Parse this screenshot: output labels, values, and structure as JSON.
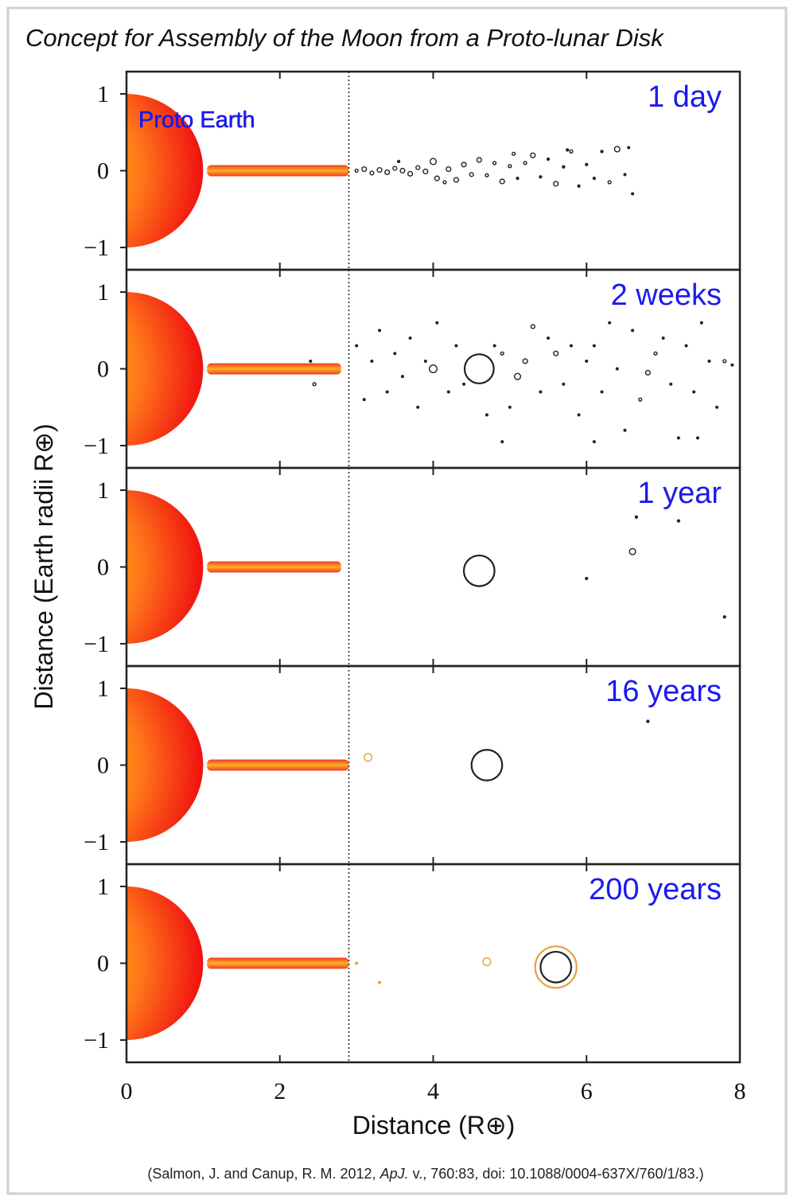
{
  "chart_data": {
    "type": "scatter",
    "title": "Concept for Assembly of the Moon from a Proto-lunar Disk",
    "xlabel": "Distance (R⊕)",
    "ylabel": "Distance (Earth radii R⊕)",
    "xlim": [
      0,
      8
    ],
    "xticks": [
      0,
      2,
      4,
      6,
      8
    ],
    "ylim": [
      -1.29,
      1.29
    ],
    "yticks": [
      {
        "value": 1,
        "label": "1"
      },
      0,
      {
        "value": -1,
        "label": "−1"
      }
    ],
    "roche_limit": 2.9,
    "earth_label": "Proto Earth",
    "panels": [
      {
        "label": "1 day",
        "disk_end": 2.9,
        "particles": [
          {
            "color": "#222222",
            "x": [
              3.0,
              3.1,
              3.2,
              3.3,
              3.4,
              3.5,
              3.6,
              3.7,
              3.8,
              3.9,
              4.0,
              4.05,
              4.2,
              4.3,
              4.4,
              4.5,
              4.6,
              4.7,
              4.8,
              4.9,
              5.0,
              5.1,
              5.2,
              5.3,
              5.4,
              5.5,
              5.6,
              5.7,
              5.8,
              5.9,
              6.0,
              6.1,
              6.2,
              6.3,
              6.4,
              6.5,
              6.55,
              6.6,
              4.15,
              5.05,
              5.75,
              3.55
            ],
            "y": [
              0,
              0.02,
              -0.03,
              0.01,
              -0.02,
              0.03,
              0,
              -0.04,
              0.04,
              -0.01,
              0.12,
              -0.1,
              0.02,
              -0.12,
              0.08,
              -0.05,
              0.14,
              -0.06,
              0.1,
              -0.14,
              0.06,
              -0.1,
              0.1,
              0.2,
              -0.08,
              0.15,
              -0.17,
              0.05,
              0.25,
              -0.2,
              0.08,
              -0.1,
              0.25,
              -0.15,
              0.28,
              -0.05,
              0.3,
              -0.3,
              -0.15,
              0.22,
              0.27,
              0.12
            ],
            "r": [
              0.02,
              0.03,
              0.025,
              0.03,
              0.03,
              0.025,
              0.03,
              0.03,
              0.025,
              0.03,
              0.04,
              0.03,
              0.03,
              0.03,
              0.03,
              0.025,
              0.03,
              0.02,
              0.02,
              0.03,
              0.02,
              0.015,
              0.02,
              0.03,
              0.015,
              0.015,
              0.03,
              0.015,
              0.02,
              0.015,
              0.015,
              0.015,
              0.015,
              0.02,
              0.035,
              0.01,
              0.01,
              0.01,
              0.02,
              0.02,
              0.015,
              0.015
            ]
          }
        ]
      },
      {
        "label": "2 weeks",
        "disk_end": 2.8,
        "particles": [
          {
            "color": "#222222",
            "x": [
              2.4,
              2.45,
              3.0,
              3.1,
              3.2,
              3.3,
              3.4,
              3.5,
              3.6,
              3.7,
              3.8,
              3.9,
              4.0,
              4.05,
              4.2,
              4.3,
              4.4,
              4.6,
              4.7,
              4.8,
              4.9,
              5.0,
              5.1,
              5.2,
              5.3,
              5.4,
              5.5,
              5.6,
              5.7,
              5.8,
              5.9,
              6.0,
              6.1,
              6.2,
              6.3,
              6.4,
              6.5,
              6.6,
              6.7,
              6.8,
              6.9,
              7.0,
              7.1,
              7.2,
              7.3,
              7.4,
              7.5,
              7.6,
              7.7,
              7.8,
              7.9,
              4.9,
              6.1,
              7.45
            ],
            "y": [
              0.1,
              -0.2,
              0.3,
              -0.4,
              0.1,
              0.5,
              -0.3,
              0.2,
              -0.1,
              0.4,
              -0.5,
              0.1,
              0,
              0.6,
              -0.3,
              0.3,
              -0.2,
              0,
              -0.6,
              0.3,
              0.2,
              -0.5,
              -0.1,
              0.1,
              0.55,
              -0.3,
              0.4,
              0.2,
              -0.2,
              0.3,
              -0.6,
              0.1,
              0.3,
              -0.3,
              0.6,
              0,
              -0.8,
              0.5,
              -0.4,
              -0.05,
              0.2,
              0.4,
              -0.2,
              -0.9,
              0.3,
              -0.3,
              0.6,
              0.1,
              -0.5,
              0.1,
              0.05,
              -0.95,
              -0.95,
              -0.9
            ],
            "r": [
              0.01,
              0.02,
              0.01,
              0.01,
              0.01,
              0.01,
              0.01,
              0.01,
              0.01,
              0.01,
              0.01,
              0.01,
              0.05,
              0.01,
              0.01,
              0.01,
              0.01,
              0.19,
              0.01,
              0.01,
              0.02,
              0.01,
              0.04,
              0.03,
              0.025,
              0.01,
              0.01,
              0.03,
              0.01,
              0.01,
              0.01,
              0.01,
              0.01,
              0.01,
              0.01,
              0.01,
              0.01,
              0.01,
              0.02,
              0.03,
              0.02,
              0.01,
              0.01,
              0.01,
              0.01,
              0.01,
              0.01,
              0.01,
              0.01,
              0.02,
              0.01,
              0.01,
              0.01,
              0.01
            ]
          }
        ]
      },
      {
        "label": "1 year",
        "disk_end": 2.8,
        "particles": [
          {
            "color": "#222222",
            "x": [
              4.6,
              6.6,
              6.0,
              6.65,
              7.2,
              7.8
            ],
            "y": [
              -0.05,
              0.2,
              -0.15,
              0.65,
              0.6,
              -0.65
            ],
            "r": [
              0.2,
              0.04,
              0.015,
              0.015,
              0.015,
              0.015
            ]
          }
        ]
      },
      {
        "label": "16 years",
        "disk_end": 2.9,
        "particles": [
          {
            "color": "#222222",
            "x": [
              4.7,
              6.8
            ],
            "y": [
              0,
              0.57
            ],
            "r": [
              0.2,
              0.015
            ]
          },
          {
            "color": "#e8a040",
            "x": [
              3.15
            ],
            "y": [
              0.1
            ],
            "r": [
              0.05
            ]
          }
        ]
      },
      {
        "label": "200 years",
        "disk_end": 2.9,
        "particles": [
          {
            "color": "#e8a040",
            "x": [
              5.6,
              4.7,
              3.3,
              3.0
            ],
            "y": [
              -0.05,
              0.02,
              -0.25,
              0.0
            ],
            "r": [
              0.27,
              0.05,
              0.01,
              0.01
            ]
          },
          {
            "color": "#222222",
            "x": [
              5.6
            ],
            "y": [
              -0.05
            ],
            "r": [
              0.2
            ]
          }
        ]
      }
    ]
  },
  "citation": [
    "(Salmon, J. and Canup, R. M. 2012, ",
    "ApJ.",
    " v., 760:83, doi: 10.1088/0004-637X/760/1/83.)"
  ]
}
